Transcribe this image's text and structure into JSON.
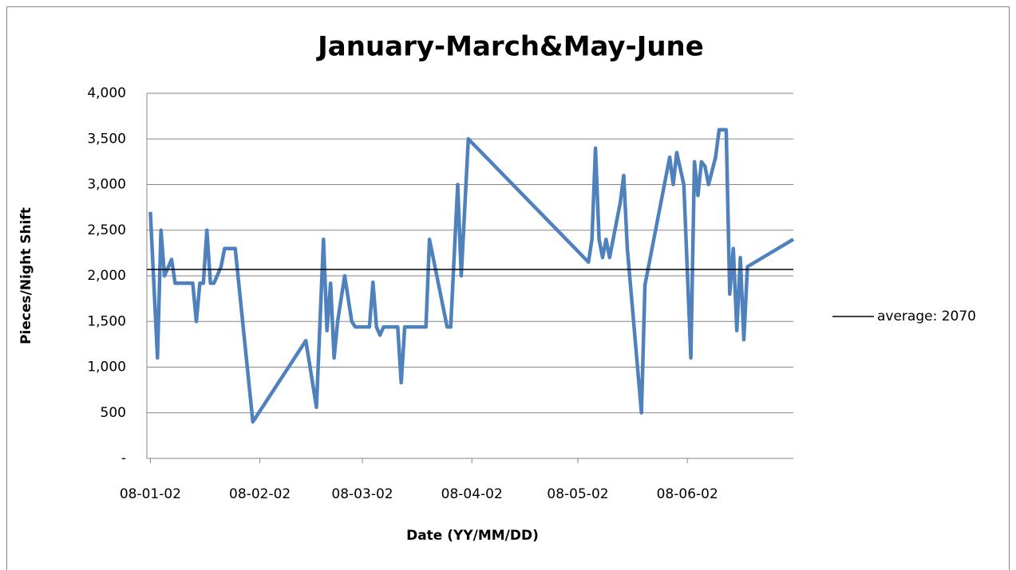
{
  "chart_data": {
    "type": "line",
    "title": "January-March&May-June",
    "x_label": "Date (YY/MM/DD)",
    "y_label": "Pieces/Night Shift",
    "x": [
      "08-01-02",
      "08-01-04",
      "08-01-05",
      "08-01-06",
      "08-01-08",
      "08-01-09",
      "08-01-14",
      "08-01-15",
      "08-01-16",
      "08-01-17",
      "08-01-18",
      "08-01-19",
      "08-01-20",
      "08-01-22",
      "08-01-23",
      "08-01-26",
      "08-01-31",
      "08-02-15",
      "08-02-18",
      "08-02-20",
      "08-02-21",
      "08-02-22",
      "08-02-23",
      "08-02-24",
      "08-02-26",
      "08-02-28",
      "08-02-29",
      "08-03-04",
      "08-03-05",
      "08-03-06",
      "08-03-07",
      "08-03-08",
      "08-03-12",
      "08-03-13",
      "08-03-14",
      "08-03-20",
      "08-03-21",
      "08-03-26",
      "08-03-27",
      "08-03-29",
      "08-03-30",
      "08-04-01",
      "08-05-05",
      "08-05-06",
      "08-05-07",
      "08-05-08",
      "08-05-09",
      "08-05-10",
      "08-05-11",
      "08-05-14",
      "08-05-15",
      "08-05-16",
      "08-05-20",
      "08-05-21",
      "08-05-28",
      "08-05-29",
      "08-05-30",
      "08-06-01",
      "08-06-03",
      "08-06-04",
      "08-06-05",
      "08-06-06",
      "08-06-07",
      "08-06-08",
      "08-06-10",
      "08-06-11",
      "08-06-13",
      "08-06-14",
      "08-06-15",
      "08-06-16",
      "08-06-17",
      "08-06-18",
      "08-06-19",
      "08-07-02"
    ],
    "series": [
      {
        "color": "#4f81bd",
        "values": [
          2700,
          1100,
          2500,
          2000,
          2180,
          1920,
          1920,
          1500,
          1920,
          1920,
          2500,
          1920,
          1920,
          2100,
          2300,
          2300,
          400,
          1290,
          560,
          2400,
          1400,
          1920,
          1100,
          1500,
          2000,
          1500,
          1440,
          1440,
          1930,
          1440,
          1350,
          1440,
          1440,
          830,
          1440,
          1440,
          2400,
          1440,
          1440,
          3000,
          2000,
          3500,
          2150,
          2400,
          3400,
          2400,
          2200,
          2400,
          2200,
          2800,
          3100,
          2300,
          500,
          1900,
          3300,
          3000,
          3350,
          3000,
          1100,
          3250,
          2880,
          3250,
          3200,
          3000,
          3300,
          3600,
          3600,
          1800,
          2300,
          1400,
          2200,
          1300,
          2100,
          2400
        ]
      }
    ],
    "reference_lines": [
      {
        "name": "average: 2070",
        "value": 2070,
        "color": "#000000"
      }
    ],
    "xlim": [
      "08-01-01",
      "08-07-02"
    ],
    "xticks": [
      "08-01-02",
      "08-02-02",
      "08-03-02",
      "08-04-02",
      "08-05-02",
      "08-06-02"
    ],
    "ylim": [
      0,
      4000
    ],
    "yticks": [
      {
        "value": 0,
        "label": "-"
      },
      {
        "value": 500,
        "label": "500"
      },
      {
        "value": 1000,
        "label": "1,000"
      },
      {
        "value": 1500,
        "label": "1,500"
      },
      {
        "value": 2000,
        "label": "2,000"
      },
      {
        "value": 2500,
        "label": "2,500"
      },
      {
        "value": 3000,
        "label": "3,000"
      },
      {
        "value": 3500,
        "label": "3,500"
      },
      {
        "value": 4000,
        "label": "4,000"
      }
    ],
    "grid": true,
    "legend": "right"
  }
}
